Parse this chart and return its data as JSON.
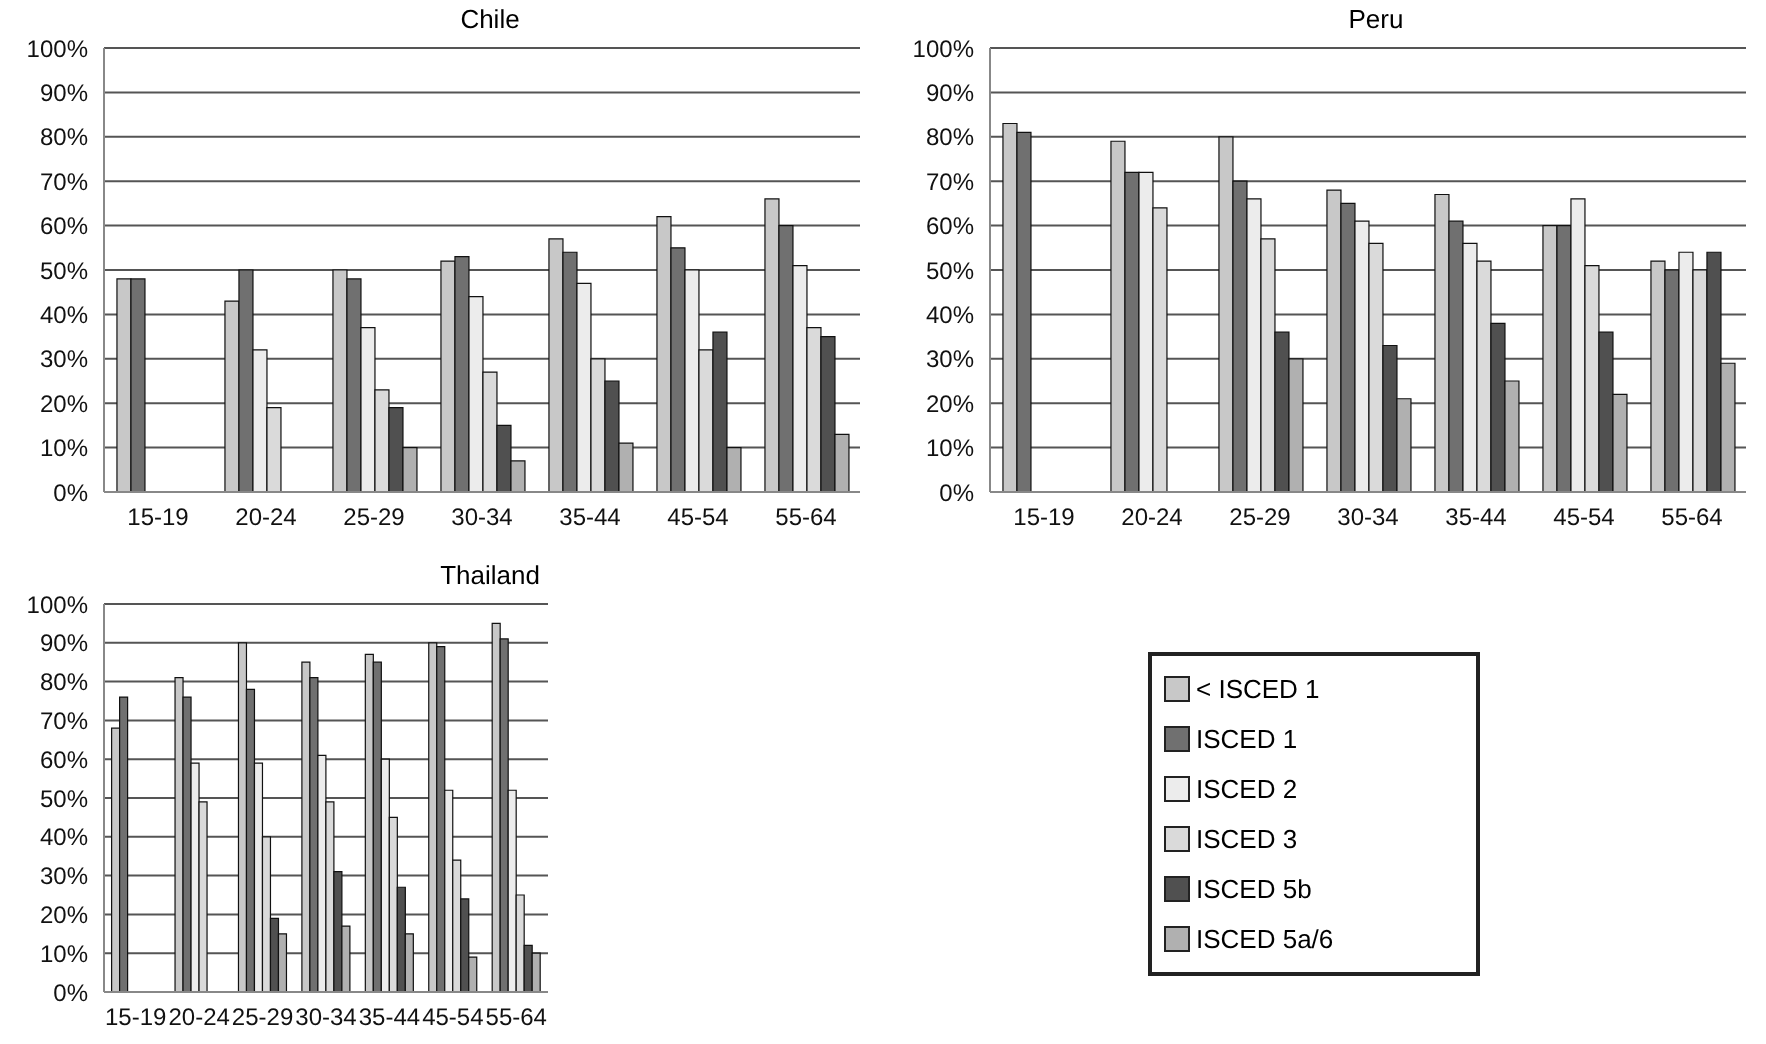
{
  "chart_data": [
    {
      "type": "bar",
      "title": "Chile",
      "categories": [
        "15-19",
        "20-24",
        "25-29",
        "30-34",
        "35-44",
        "45-54",
        "55-64"
      ],
      "series": [
        {
          "color": "#c8c8c8",
          "values": [
            48,
            43,
            50,
            52,
            57,
            62,
            66
          ]
        },
        {
          "color": "#707070",
          "values": [
            48,
            50,
            48,
            53,
            54,
            55,
            60
          ]
        },
        {
          "color": "#ececec",
          "values": [
            null,
            32,
            37,
            44,
            47,
            50,
            51
          ]
        },
        {
          "color": "#dadada",
          "values": [
            null,
            19,
            23,
            27,
            30,
            32,
            37
          ]
        },
        {
          "color": "#505050",
          "values": [
            null,
            null,
            19,
            15,
            25,
            36,
            35
          ]
        },
        {
          "color": "#b0b0b0",
          "values": [
            null,
            null,
            10,
            7,
            11,
            10,
            13
          ]
        }
      ],
      "ylim": [
        0,
        100
      ],
      "yticks": [
        {
          "value": 0,
          "label": "0%"
        },
        {
          "value": 10,
          "label": "10%"
        },
        {
          "value": 20,
          "label": "20%"
        },
        {
          "value": 30,
          "label": "30%"
        },
        {
          "value": 40,
          "label": "40%"
        },
        {
          "value": 50,
          "label": "50%"
        },
        {
          "value": 60,
          "label": "60%"
        },
        {
          "value": 70,
          "label": "70%"
        },
        {
          "value": 80,
          "label": "80%"
        },
        {
          "value": 90,
          "label": "90%"
        },
        {
          "value": 100,
          "label": "100%"
        }
      ],
      "grid": "y",
      "legend": false
    },
    {
      "type": "bar",
      "title": "Peru",
      "categories": [
        "15-19",
        "20-24",
        "25-29",
        "30-34",
        "35-44",
        "45-54",
        "55-64"
      ],
      "series": [
        {
          "color": "#c8c8c8",
          "values": [
            83,
            79,
            80,
            68,
            67,
            60,
            52
          ]
        },
        {
          "color": "#707070",
          "values": [
            81,
            72,
            70,
            65,
            61,
            60,
            50
          ]
        },
        {
          "color": "#ececec",
          "values": [
            null,
            72,
            66,
            61,
            56,
            66,
            54
          ]
        },
        {
          "color": "#dadada",
          "values": [
            null,
            64,
            57,
            56,
            52,
            51,
            50
          ]
        },
        {
          "color": "#505050",
          "values": [
            null,
            null,
            36,
            33,
            38,
            36,
            54
          ]
        },
        {
          "color": "#b0b0b0",
          "values": [
            null,
            null,
            30,
            21,
            25,
            22,
            29
          ]
        }
      ],
      "ylim": [
        0,
        100
      ],
      "yticks": [
        {
          "value": 0,
          "label": "0%"
        },
        {
          "value": 10,
          "label": "10%"
        },
        {
          "value": 20,
          "label": "20%"
        },
        {
          "value": 30,
          "label": "30%"
        },
        {
          "value": 40,
          "label": "40%"
        },
        {
          "value": 50,
          "label": "50%"
        },
        {
          "value": 60,
          "label": "60%"
        },
        {
          "value": 70,
          "label": "70%"
        },
        {
          "value": 80,
          "label": "80%"
        },
        {
          "value": 90,
          "label": "90%"
        },
        {
          "value": 100,
          "label": "100%"
        }
      ],
      "grid": "y",
      "legend": false
    },
    {
      "type": "bar",
      "title": "Thailand",
      "categories": [
        "15-19",
        "20-24",
        "25-29",
        "30-34",
        "35-44",
        "45-54",
        "55-64"
      ],
      "series": [
        {
          "name": "< ISCED 1",
          "color": "#c8c8c8",
          "values": [
            68,
            81,
            90,
            85,
            87,
            90,
            95
          ]
        },
        {
          "name": "ISCED 1",
          "color": "#707070",
          "values": [
            76,
            76,
            78,
            81,
            85,
            89,
            91
          ]
        },
        {
          "name": "ISCED 2",
          "color": "#ececec",
          "values": [
            null,
            59,
            59,
            61,
            60,
            52,
            52
          ]
        },
        {
          "name": "ISCED 3",
          "color": "#dadada",
          "values": [
            null,
            49,
            40,
            49,
            45,
            34,
            25
          ]
        },
        {
          "name": "ISCED 5b",
          "color": "#505050",
          "values": [
            null,
            null,
            19,
            31,
            27,
            24,
            12
          ]
        },
        {
          "name": "ISCED 5a/6",
          "color": "#b0b0b0",
          "values": [
            null,
            null,
            15,
            17,
            15,
            9,
            10
          ]
        }
      ],
      "ylim": [
        0,
        100
      ],
      "yticks": [
        {
          "value": 0,
          "label": "0%"
        },
        {
          "value": 10,
          "label": "10%"
        },
        {
          "value": 20,
          "label": "20%"
        },
        {
          "value": 30,
          "label": "30%"
        },
        {
          "value": 40,
          "label": "40%"
        },
        {
          "value": 50,
          "label": "50%"
        },
        {
          "value": 60,
          "label": "60%"
        },
        {
          "value": 70,
          "label": "70%"
        },
        {
          "value": 80,
          "label": "80%"
        },
        {
          "value": 90,
          "label": "90%"
        },
        {
          "value": 100,
          "label": "100%"
        }
      ],
      "grid": "y",
      "legend": "right"
    }
  ]
}
